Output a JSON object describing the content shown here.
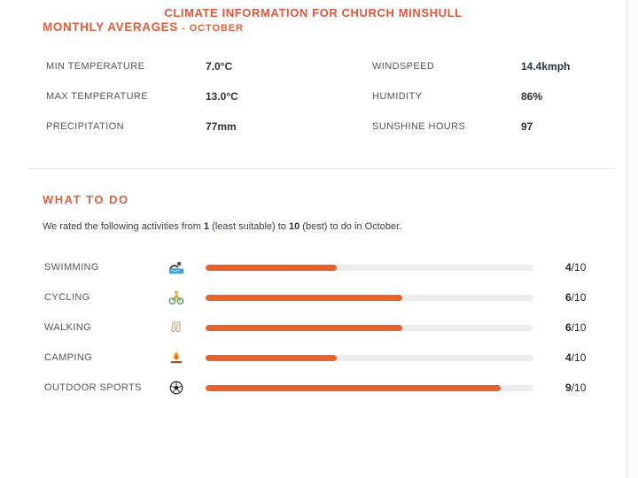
{
  "header": {
    "title": "CLIMATE INFORMATION FOR CHURCH MINSHULL",
    "subtitle": "MONTHLY AVERAGES",
    "subtitle_month": "- OCTOBER"
  },
  "climate_stats": {
    "left": [
      {
        "label": "MIN TEMPERATURE",
        "value": "7.0°C"
      },
      {
        "label": "MAX TEMPERATURE",
        "value": "13.0°C"
      },
      {
        "label": "PRECIPITATION",
        "value": "77mm"
      }
    ],
    "right": [
      {
        "label": "WINDSPEED",
        "value": "14.4kmph"
      },
      {
        "label": "HUMIDITY",
        "value": "86%"
      },
      {
        "label": "SUNSHINE HOURS",
        "value": "97"
      }
    ]
  },
  "what_to_do": {
    "heading": "WHAT TO DO",
    "description": {
      "part1": "We rated the following activities from ",
      "min_value": "1",
      "part2": " (least suitable) to ",
      "max_value": "10",
      "part3": " (best) to do in October."
    },
    "rating_suffix": "/10",
    "rating_max": 10,
    "activities": [
      {
        "label": "SWIMMING",
        "icon": "swimmer-emoji",
        "rating": 4
      },
      {
        "label": "CYCLING",
        "icon": "cyclist-emoji",
        "rating": 6
      },
      {
        "label": "WALKING",
        "icon": "hiking-boots-emoji",
        "rating": 6
      },
      {
        "label": "CAMPING",
        "icon": "campfire-emoji",
        "rating": 4
      },
      {
        "label": "OUTDOOR SPORTS",
        "icon": "soccer-ball-emoji",
        "rating": 9
      }
    ]
  },
  "colors": {
    "heading_accent": "#e2603b",
    "title_accent": "#e2573d",
    "bar_fill": "#e8622b",
    "bar_track": "#ededed"
  }
}
